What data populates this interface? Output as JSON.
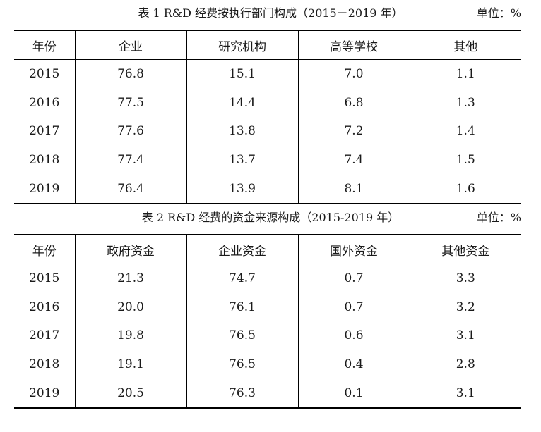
{
  "table1": {
    "caption": "表 1   R&D 经费按执行部门构成（2015－2019 年）",
    "unit": "单位：%",
    "headers": [
      "年份",
      "企业",
      "研究机构",
      "高等学校",
      "其他"
    ],
    "rows": [
      [
        "2015",
        "76.8",
        "15.1",
        "7.0",
        "1.1"
      ],
      [
        "2016",
        "77.5",
        "14.4",
        "6.8",
        "1.3"
      ],
      [
        "2017",
        "77.6",
        "13.8",
        "7.2",
        "1.4"
      ],
      [
        "2018",
        "77.4",
        "13.7",
        "7.4",
        "1.5"
      ],
      [
        "2019",
        "76.4",
        "13.9",
        "8.1",
        "1.6"
      ]
    ]
  },
  "table2": {
    "caption": "表 2   R&D 经费的资金来源构成（2015-2019 年）",
    "unit": "单位：%",
    "headers": [
      "年份",
      "政府资金",
      "企业资金",
      "国外资金",
      "其他资金"
    ],
    "rows": [
      [
        "2015",
        "21.3",
        "74.7",
        "0.7",
        "3.3"
      ],
      [
        "2016",
        "20.0",
        "76.1",
        "0.7",
        "3.2"
      ],
      [
        "2017",
        "19.8",
        "76.5",
        "0.6",
        "3.1"
      ],
      [
        "2018",
        "19.1",
        "76.5",
        "0.4",
        "2.8"
      ],
      [
        "2019",
        "20.5",
        "76.3",
        "0.1",
        "3.1"
      ]
    ]
  }
}
